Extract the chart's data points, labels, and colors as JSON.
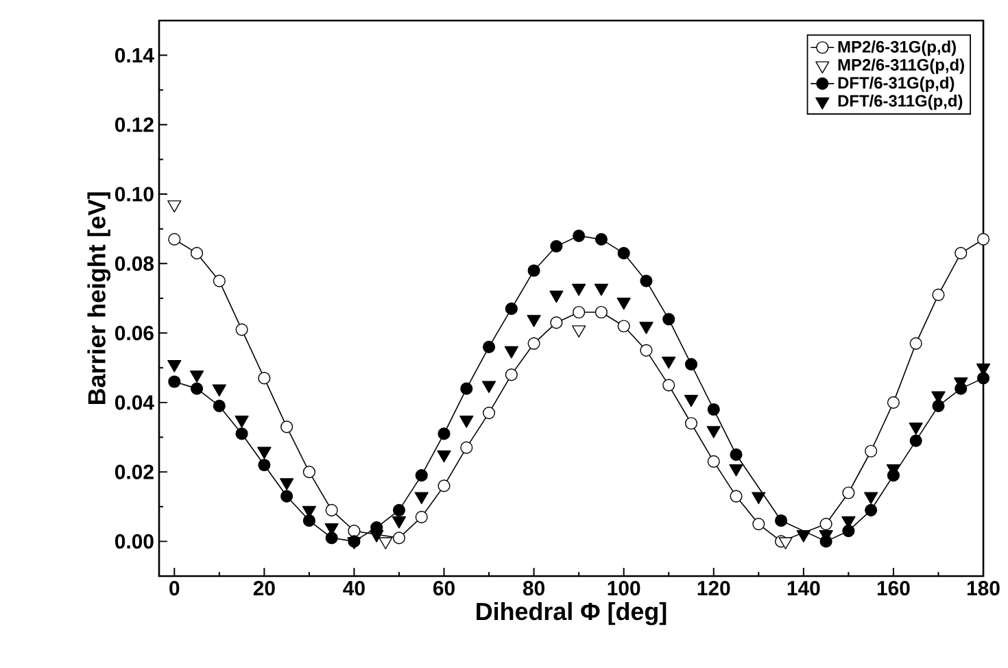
{
  "chart_data": {
    "type": "scatter",
    "xlabel": "Dihedral Φ [deg]",
    "ylabel": "Barrier height [eV]",
    "x": [
      0,
      5,
      10,
      15,
      20,
      25,
      30,
      35,
      40,
      45,
      50,
      55,
      60,
      65,
      70,
      75,
      80,
      85,
      90,
      95,
      100,
      105,
      110,
      115,
      120,
      125,
      130,
      135,
      140,
      145,
      150,
      155,
      160,
      165,
      170,
      175,
      180
    ],
    "series": [
      {
        "name": "MP2/6-31G(p,d)",
        "color": "#ffffff",
        "type": "line",
        "marker": "circle",
        "line_style": "solid",
        "values": [
          0.087,
          0.083,
          0.075,
          0.061,
          0.047,
          0.033,
          0.02,
          0.009,
          0.003,
          null,
          0.001,
          0.007,
          0.016,
          0.027,
          0.037,
          0.048,
          0.057,
          0.063,
          0.066,
          0.066,
          0.062,
          0.055,
          0.045,
          0.034,
          0.023,
          0.013,
          0.005,
          0.0,
          null,
          0.005,
          0.014,
          0.026,
          0.04,
          0.057,
          0.071,
          0.083,
          0.087
        ]
      },
      {
        "name": "MP2/6-311G(p,d)",
        "color": "#ffffff",
        "marker": "triangle",
        "x": [
          0,
          47,
          90,
          136
        ],
        "values": [
          0.097,
          0.0,
          0.061,
          0.0
        ]
      },
      {
        "name": "DFT/6-31G(p,d)",
        "color": "#000000",
        "type": "line",
        "marker": "circle",
        "line_style": "solid",
        "values": [
          0.046,
          0.044,
          0.039,
          0.031,
          0.022,
          0.013,
          0.006,
          0.001,
          0.0,
          0.004,
          0.009,
          0.019,
          0.031,
          0.044,
          0.056,
          0.067,
          0.078,
          0.085,
          0.088,
          0.087,
          0.083,
          0.075,
          0.064,
          0.051,
          0.038,
          0.025,
          null,
          0.006,
          null,
          0.0,
          0.003,
          0.009,
          0.019,
          0.029,
          0.039,
          0.044,
          0.047
        ]
      },
      {
        "name": "DFT/6-311G(p,d)",
        "color": "#000000",
        "marker": "triangle",
        "values": [
          0.051,
          0.048,
          0.044,
          0.035,
          0.026,
          0.017,
          0.009,
          0.004,
          0.0,
          0.002,
          0.006,
          0.013,
          0.025,
          0.035,
          0.045,
          0.055,
          0.064,
          0.071,
          0.073,
          0.073,
          0.069,
          0.062,
          0.052,
          0.041,
          0.032,
          0.021,
          0.013,
          null,
          0.002,
          0.002,
          0.006,
          0.013,
          0.021,
          0.033,
          0.042,
          0.046,
          0.05
        ]
      }
    ],
    "xlim": [
      -3.4,
      180
    ],
    "ylim": [
      -0.01,
      0.15
    ],
    "xticks": [
      0,
      20,
      40,
      60,
      80,
      100,
      120,
      140,
      160,
      180
    ],
    "yticks": [
      {
        "value": 0,
        "label": "0.00"
      },
      {
        "value": 0.02,
        "label": "0.02"
      },
      {
        "value": 0.04,
        "label": "0.04"
      },
      {
        "value": 0.06,
        "label": "0.06"
      },
      {
        "value": 0.08,
        "label": "0.08"
      },
      {
        "value": 0.1,
        "label": "0.10"
      },
      {
        "value": 0.12,
        "label": "0.12"
      },
      {
        "value": 0.14,
        "label": "0.14"
      }
    ],
    "grid": false,
    "legend": "top right"
  }
}
